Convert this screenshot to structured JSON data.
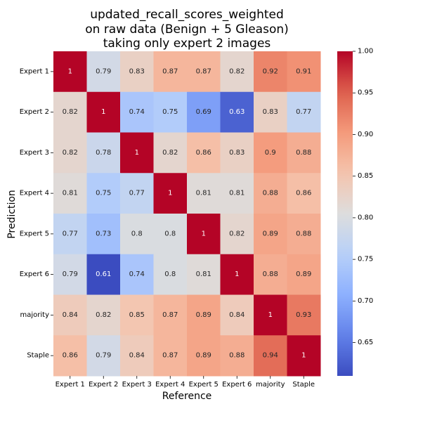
{
  "chart_data": {
    "type": "heatmap",
    "title": [
      "updated_recall_scores_weighted",
      "on raw data (Benign + 5 Gleason)",
      "taking only expert 2 images"
    ],
    "xlabel": "Reference",
    "ylabel": "Prediction",
    "x_categories": [
      "Expert 1",
      "Expert 2",
      "Expert 3",
      "Expert 4",
      "Expert 5",
      "Expert 6",
      "majority",
      "Staple"
    ],
    "y_categories": [
      "Expert 1",
      "Expert 2",
      "Expert 3",
      "Expert 4",
      "Expert 5",
      "Expert 6",
      "majority",
      "Staple"
    ],
    "values": [
      [
        1,
        0.79,
        0.83,
        0.87,
        0.87,
        0.82,
        0.92,
        0.91
      ],
      [
        0.82,
        1,
        0.74,
        0.75,
        0.69,
        0.63,
        0.83,
        0.77
      ],
      [
        0.82,
        0.78,
        1,
        0.82,
        0.86,
        0.83,
        0.9,
        0.88
      ],
      [
        0.81,
        0.75,
        0.77,
        1,
        0.81,
        0.81,
        0.88,
        0.86
      ],
      [
        0.77,
        0.73,
        0.8,
        0.8,
        1,
        0.82,
        0.89,
        0.88
      ],
      [
        0.79,
        0.61,
        0.74,
        0.8,
        0.81,
        1,
        0.88,
        0.89
      ],
      [
        0.84,
        0.82,
        0.85,
        0.87,
        0.89,
        0.84,
        1,
        0.93
      ],
      [
        0.86,
        0.79,
        0.84,
        0.87,
        0.89,
        0.88,
        0.94,
        1
      ]
    ],
    "colormap": "coolwarm",
    "vmin": 0.61,
    "vmax": 1.0,
    "colorbar_ticks": [
      1.0,
      0.95,
      0.9,
      0.85,
      0.8,
      0.75,
      0.7,
      0.65
    ],
    "colorbar_tick_labels": [
      "1.00",
      "0.95",
      "0.90",
      "0.85",
      "0.80",
      "0.75",
      "0.70",
      "0.65"
    ]
  }
}
